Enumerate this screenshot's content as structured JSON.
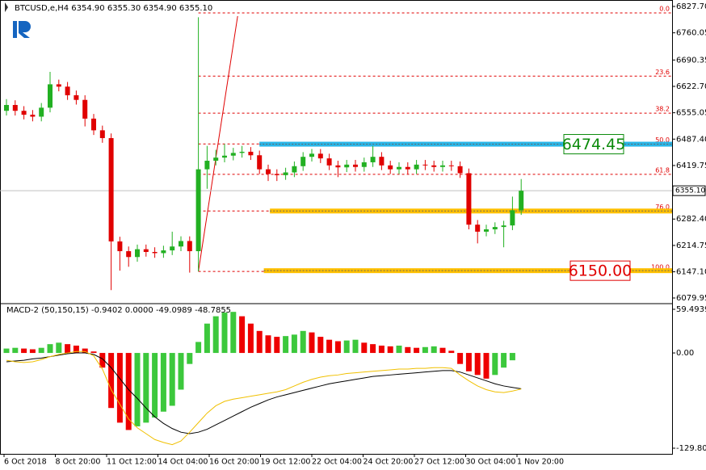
{
  "chart_data": [
    {
      "type": "candlestick",
      "title": "BTCUSD,e,H4  6354.90 6355.30 6354.90 6355.10",
      "categories": [
        "6 Oct 2018",
        "8 Oct 20:00",
        "11 Oct 12:00",
        "14 Oct 04:00",
        "16 Oct 20:00",
        "19 Oct 12:00",
        "22 Oct 04:00",
        "24 Oct 20:00",
        "27 Oct 12:00",
        "30 Oct 04:00",
        "1 Nov 20:00"
      ],
      "ylim": [
        6067.5,
        6840.1
      ],
      "yticks": [
        {
          "value": 6827.7,
          "label": "6827.70"
        },
        6760.05,
        6690.35,
        {
          "value": 6622.7,
          "label": "6622.70"
        },
        6555.05,
        {
          "value": 6487.4,
          "label": "6487.40"
        },
        6419.75,
        {
          "value": 6282.4,
          "label": "6282.40"
        },
        6214.75,
        {
          "value": 6147.1,
          "label": "6147.10"
        },
        6079.95
      ],
      "current_price": {
        "value": 6355.1,
        "label": "6355.10"
      },
      "open": [
        6560,
        6575,
        6560,
        6550,
        6545,
        6568,
        6628,
        6622,
        6600,
        6588,
        6540,
        6510,
        6490,
        6225,
        6200,
        6185,
        6205,
        6198,
        6195,
        6202,
        6212,
        6226,
        6200,
        6410,
        6432,
        6440,
        6445,
        6452,
        6455,
        6446,
        6410,
        6398,
        6395,
        6402,
        6418,
        6442,
        6450,
        6438,
        6420,
        6415,
        6422,
        6416,
        6428,
        6442,
        6420,
        6410,
        6416,
        6410,
        6422,
        6420,
        6416,
        6420,
        6418,
        6400,
        6268,
        6250,
        6256,
        6262,
        6266,
        6305
      ],
      "high": [
        6590,
        6587,
        6572,
        6562,
        6580,
        6660,
        6640,
        6634,
        6612,
        6600,
        6552,
        6522,
        6502,
        6237,
        6212,
        6217,
        6217,
        6210,
        6214,
        6250,
        6238,
        6238,
        6800,
        6470,
        6460,
        6475,
        6465,
        6470,
        6467,
        6458,
        6422,
        6410,
        6414,
        6430,
        6454,
        6462,
        6462,
        6450,
        6432,
        6434,
        6434,
        6440,
        6470,
        6454,
        6432,
        6428,
        6428,
        6434,
        6434,
        6432,
        6432,
        6432,
        6430,
        6412,
        6280,
        6268,
        6274,
        6278,
        6340,
        6385
      ],
      "low": [
        6548,
        6548,
        6538,
        6533,
        6533,
        6556,
        6610,
        6588,
        6576,
        6520,
        6498,
        6478,
        6100,
        6150,
        6160,
        6173,
        6186,
        6183,
        6183,
        6190,
        6200,
        6145,
        6148,
        6360,
        6420,
        6428,
        6433,
        6440,
        6434,
        6398,
        6380,
        6380,
        6383,
        6390,
        6406,
        6430,
        6426,
        6408,
        6390,
        6403,
        6404,
        6404,
        6416,
        6408,
        6398,
        6398,
        6398,
        6398,
        6408,
        6404,
        6404,
        6406,
        6388,
        6256,
        6220,
        6238,
        6244,
        6210,
        6254,
        6293
      ],
      "close": [
        6575,
        6560,
        6550,
        6545,
        6568,
        6628,
        6622,
        6600,
        6588,
        6540,
        6510,
        6490,
        6225,
        6200,
        6185,
        6205,
        6198,
        6195,
        6202,
        6212,
        6226,
        6200,
        6410,
        6432,
        6440,
        6445,
        6452,
        6455,
        6446,
        6410,
        6398,
        6395,
        6402,
        6418,
        6442,
        6450,
        6438,
        6420,
        6415,
        6422,
        6416,
        6428,
        6442,
        6420,
        6410,
        6416,
        6410,
        6422,
        6420,
        6416,
        6420,
        6418,
        6400,
        6268,
        6250,
        6256,
        6262,
        6266,
        6305,
        6355
      ],
      "up_color": "#22b022",
      "down_color": "#e00000",
      "fib_levels": [
        {
          "value": 6811,
          "label": "0.0"
        },
        {
          "value": 6649,
          "label": "23.6"
        },
        {
          "value": 6554,
          "label": "38.2"
        },
        {
          "value": 6475,
          "label": "50.0"
        },
        {
          "value": 6397,
          "label": "61.8"
        },
        {
          "value": 6303,
          "label": "76.0"
        },
        {
          "value": 6148,
          "label": "100.0"
        }
      ],
      "trendline": [
        6148,
        6803
      ],
      "levels": [
        {
          "value": 6474.45,
          "color": "#29b6e8"
        },
        {
          "value": 6303,
          "color": "#ffc000"
        },
        {
          "value": 6150,
          "color": "#ffc000"
        }
      ],
      "level_labels": [
        {
          "value": 6474.45,
          "color": "#0a8a0a"
        },
        {
          "value": 6150,
          "label": "6150.00",
          "color": "#e00000"
        }
      ]
    },
    {
      "type": "macd",
      "title": "MACD-2 (50,150,15) -0.9402 0.0000 -49.0989 -48.7855",
      "ylim": [
        -129.8088,
        59.4939
      ],
      "yticks": [
        59.4939,
        {
          "value": 0,
          "label": "0.00"
        },
        -129.8088
      ],
      "histogram": [
        6,
        7,
        6,
        5,
        7,
        12,
        14,
        12,
        10,
        6,
        2,
        -20,
        -75,
        -95,
        -105,
        -100,
        -95,
        -88,
        -80,
        -72,
        -50,
        -15,
        15,
        40,
        50,
        55,
        56,
        50,
        40,
        30,
        24,
        22,
        23,
        25,
        30,
        28,
        22,
        18,
        16,
        17,
        18,
        14,
        12,
        10,
        9,
        10,
        8,
        7,
        8,
        9,
        7,
        3,
        -15,
        -25,
        -30,
        -35,
        -30,
        -20,
        -10,
        0
      ],
      "rise_color": "#3cc83c",
      "fall_color": "#ee0000",
      "series": [
        {
          "color": "#000000",
          "values": [
            -12,
            -11,
            -10,
            -8,
            -7,
            -5,
            -3,
            -1,
            0,
            0,
            -2,
            -8,
            -20,
            -35,
            -50,
            -62,
            -75,
            -87,
            -96,
            -103,
            -108,
            -110,
            -108,
            -104,
            -98,
            -92,
            -86,
            -80,
            -74,
            -69,
            -64,
            -60,
            -57,
            -54,
            -51,
            -48,
            -45,
            -42,
            -40,
            -38,
            -36,
            -34,
            -32,
            -31,
            -30,
            -29,
            -28,
            -27,
            -26,
            -25,
            -24,
            -24,
            -26,
            -30,
            -34,
            -38,
            -42,
            -45,
            -47,
            -48.8
          ]
        },
        {
          "color": "#f0c000",
          "values": [
            -10,
            -12,
            -13,
            -12,
            -9,
            -5,
            -2,
            0,
            2,
            2,
            -4,
            -22,
            -50,
            -70,
            -90,
            -102,
            -110,
            -118,
            -122,
            -125,
            -120,
            -108,
            -95,
            -82,
            -72,
            -66,
            -63,
            -61,
            -59,
            -57,
            -55,
            -53,
            -50,
            -45,
            -40,
            -36,
            -33,
            -31,
            -30,
            -28,
            -27,
            -26,
            -25,
            -24,
            -23,
            -22,
            -22,
            -21,
            -21,
            -20,
            -20,
            -21,
            -30,
            -38,
            -45,
            -50,
            -53,
            -54,
            -52,
            -49.1
          ]
        }
      ]
    }
  ]
}
